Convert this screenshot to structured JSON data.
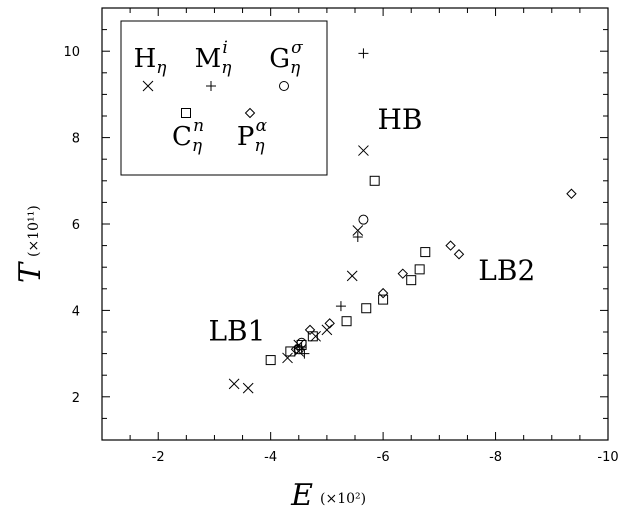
{
  "chart_data": {
    "type": "scatter",
    "x_reversed": true,
    "xlim": [
      -1,
      -10
    ],
    "ylim": [
      1,
      11
    ],
    "x_ticks": [
      -2,
      -4,
      -6,
      -8,
      -10
    ],
    "y_ticks": [
      2,
      4,
      6,
      8,
      10
    ],
    "x_tick_labels": [
      "-2",
      "-4",
      "-6",
      "-8",
      "-10"
    ],
    "y_tick_labels": [
      "2",
      "4",
      "6",
      "8",
      "10"
    ],
    "xlabel": "E",
    "xlabel_unit": "(×10²)",
    "ylabel": "T",
    "ylabel_unit": "(×10¹¹)",
    "grid": false,
    "legend_position": "top-left",
    "series": [
      {
        "name": "H_η",
        "base": "H",
        "sup": "",
        "marker": "x",
        "points": [
          [
            -3.35,
            2.3
          ],
          [
            -3.6,
            2.2
          ],
          [
            -4.3,
            2.9
          ],
          [
            -4.5,
            3.05
          ],
          [
            -4.5,
            3.2
          ],
          [
            -4.8,
            3.4
          ],
          [
            -5.0,
            3.55
          ],
          [
            -5.45,
            4.8
          ],
          [
            -5.55,
            5.85
          ],
          [
            -5.65,
            7.7
          ]
        ]
      },
      {
        "name": "M_η^i",
        "base": "M",
        "sup": "i",
        "marker": "+",
        "points": [
          [
            -4.55,
            3.15
          ],
          [
            -4.6,
            3.0
          ],
          [
            -5.25,
            4.1
          ],
          [
            -5.55,
            5.7
          ],
          [
            -5.65,
            9.95
          ]
        ]
      },
      {
        "name": "G_η^σ",
        "base": "G",
        "sup": "σ",
        "marker": "circle",
        "points": [
          [
            -4.5,
            3.1
          ],
          [
            -4.55,
            3.25
          ],
          [
            -5.65,
            6.1
          ]
        ]
      },
      {
        "name": "C_η^n",
        "base": "C",
        "sup": "n",
        "marker": "square",
        "points": [
          [
            -4.0,
            2.85
          ],
          [
            -4.35,
            3.05
          ],
          [
            -4.55,
            3.2
          ],
          [
            -4.75,
            3.4
          ],
          [
            -5.35,
            3.75
          ],
          [
            -5.7,
            4.05
          ],
          [
            -6.0,
            4.25
          ],
          [
            -6.5,
            4.7
          ],
          [
            -6.65,
            4.95
          ],
          [
            -6.75,
            5.35
          ],
          [
            -5.85,
            7.0
          ]
        ]
      },
      {
        "name": "P_η^α",
        "base": "P",
        "sup": "α",
        "marker": "diamond",
        "points": [
          [
            -4.45,
            3.1
          ],
          [
            -4.7,
            3.55
          ],
          [
            -5.05,
            3.7
          ],
          [
            -6.0,
            4.4
          ],
          [
            -6.35,
            4.85
          ],
          [
            -7.2,
            5.5
          ],
          [
            -7.35,
            5.3
          ],
          [
            -9.35,
            6.7
          ]
        ]
      }
    ],
    "annotations": [
      {
        "text": "HB",
        "x": -6.3,
        "y": 8.2
      },
      {
        "text": "LB1",
        "x": -3.4,
        "y": 3.3
      },
      {
        "text": "LB2",
        "x": -8.2,
        "y": 4.7
      }
    ]
  }
}
